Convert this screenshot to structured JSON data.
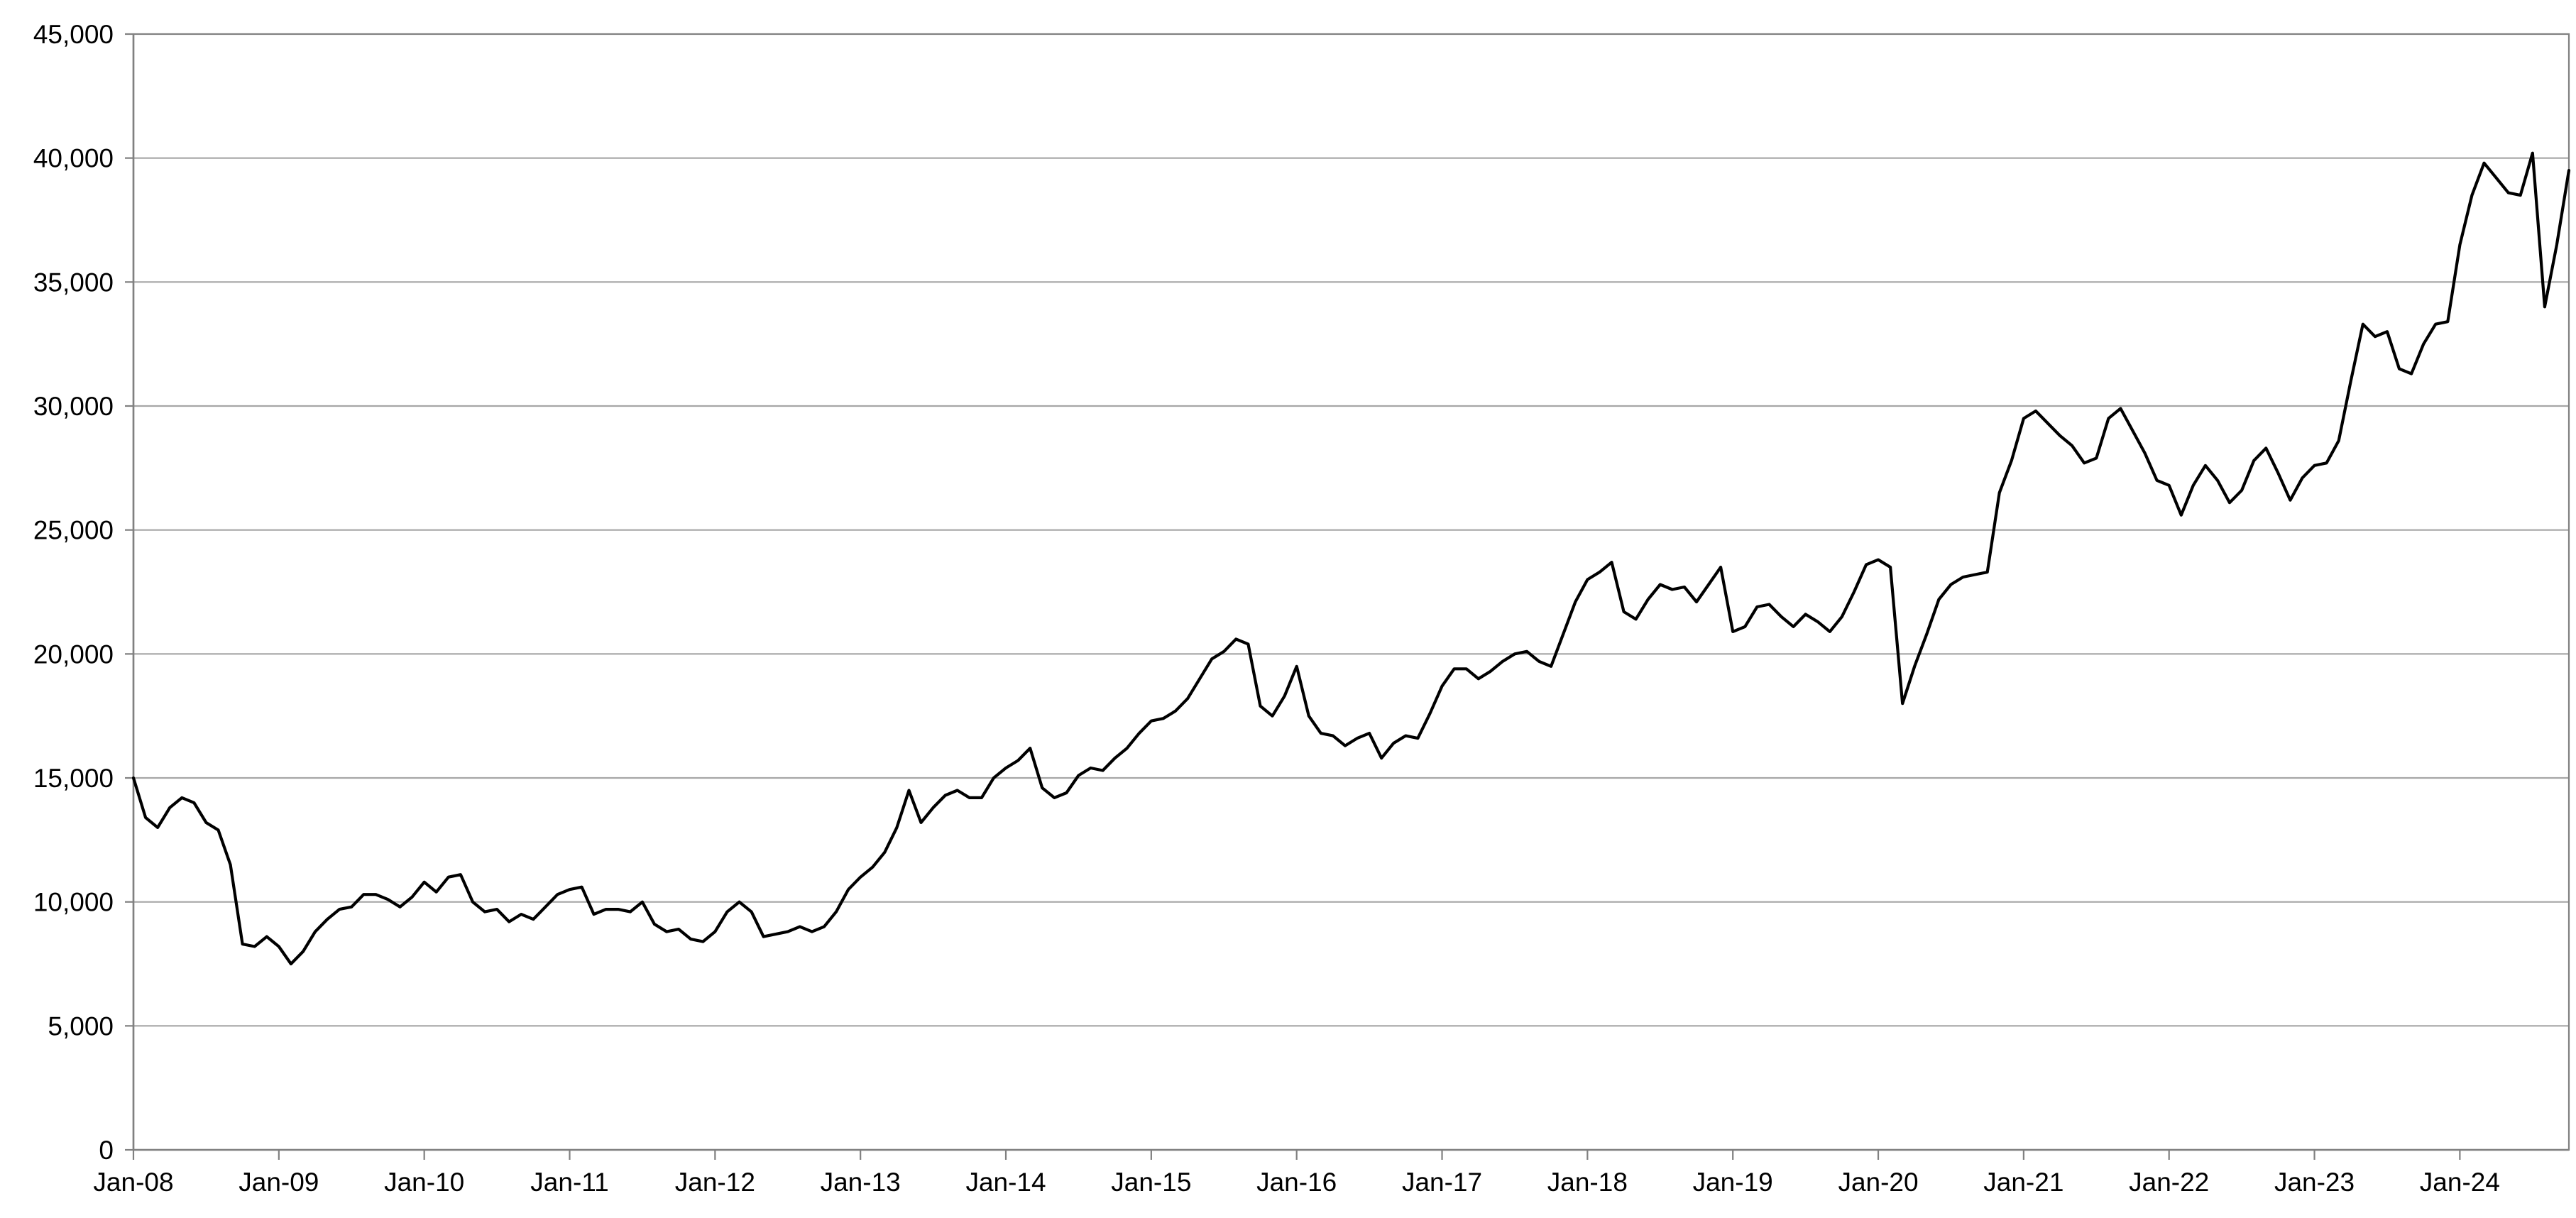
{
  "chart_data": {
    "type": "line",
    "title": "",
    "xlabel": "",
    "ylabel": "",
    "grid": true,
    "legend": "none",
    "ylim": [
      0,
      45000
    ],
    "xlim": [
      "2008-01",
      "2024-10"
    ],
    "y_ticks": [
      0,
      5000,
      10000,
      15000,
      20000,
      25000,
      30000,
      35000,
      40000,
      45000
    ],
    "y_tick_labels": [
      "0",
      "5,000",
      "10,000",
      "15,000",
      "20,000",
      "25,000",
      "30,000",
      "35,000",
      "40,000",
      "45,000"
    ],
    "x_tick_labels": [
      "Jan-08",
      "Jan-09",
      "Jan-10",
      "Jan-11",
      "Jan-12",
      "Jan-13",
      "Jan-14",
      "Jan-15",
      "Jan-16",
      "Jan-17",
      "Jan-18",
      "Jan-19",
      "Jan-20",
      "Jan-21",
      "Jan-22",
      "Jan-23",
      "Jan-24"
    ],
    "colors": {
      "line": "#000000",
      "grid": "#a6a6a6",
      "axis": "#808080"
    },
    "series": [
      {
        "x": [
          "2008-01",
          "2008-02",
          "2008-03",
          "2008-04",
          "2008-05",
          "2008-06",
          "2008-07",
          "2008-08",
          "2008-09",
          "2008-10",
          "2008-11",
          "2008-12",
          "2009-01",
          "2009-02",
          "2009-03",
          "2009-04",
          "2009-05",
          "2009-06",
          "2009-07",
          "2009-08",
          "2009-09",
          "2009-10",
          "2009-11",
          "2009-12",
          "2010-01",
          "2010-02",
          "2010-03",
          "2010-04",
          "2010-05",
          "2010-06",
          "2010-07",
          "2010-08",
          "2010-09",
          "2010-10",
          "2010-11",
          "2010-12",
          "2011-01",
          "2011-02",
          "2011-03",
          "2011-04",
          "2011-05",
          "2011-06",
          "2011-07",
          "2011-08",
          "2011-09",
          "2011-10",
          "2011-11",
          "2011-12",
          "2012-01",
          "2012-02",
          "2012-03",
          "2012-04",
          "2012-05",
          "2012-06",
          "2012-07",
          "2012-08",
          "2012-09",
          "2012-10",
          "2012-11",
          "2012-12",
          "2013-01",
          "2013-02",
          "2013-03",
          "2013-04",
          "2013-05",
          "2013-06",
          "2013-07",
          "2013-08",
          "2013-09",
          "2013-10",
          "2013-11",
          "2013-12",
          "2014-01",
          "2014-02",
          "2014-03",
          "2014-04",
          "2014-05",
          "2014-06",
          "2014-07",
          "2014-08",
          "2014-09",
          "2014-10",
          "2014-11",
          "2014-12",
          "2015-01",
          "2015-02",
          "2015-03",
          "2015-04",
          "2015-05",
          "2015-06",
          "2015-07",
          "2015-08",
          "2015-09",
          "2015-10",
          "2015-11",
          "2015-12",
          "2016-01",
          "2016-02",
          "2016-03",
          "2016-04",
          "2016-05",
          "2016-06",
          "2016-07",
          "2016-08",
          "2016-09",
          "2016-10",
          "2016-11",
          "2016-12",
          "2017-01",
          "2017-02",
          "2017-03",
          "2017-04",
          "2017-05",
          "2017-06",
          "2017-07",
          "2017-08",
          "2017-09",
          "2017-10",
          "2017-11",
          "2017-12",
          "2018-01",
          "2018-02",
          "2018-03",
          "2018-04",
          "2018-05",
          "2018-06",
          "2018-07",
          "2018-08",
          "2018-09",
          "2018-10",
          "2018-11",
          "2018-12",
          "2019-01",
          "2019-02",
          "2019-03",
          "2019-04",
          "2019-05",
          "2019-06",
          "2019-07",
          "2019-08",
          "2019-09",
          "2019-10",
          "2019-11",
          "2019-12",
          "2020-01",
          "2020-02",
          "2020-03",
          "2020-04",
          "2020-05",
          "2020-06",
          "2020-07",
          "2020-08",
          "2020-09",
          "2020-10",
          "2020-11",
          "2020-12",
          "2021-01",
          "2021-02",
          "2021-03",
          "2021-04",
          "2021-05",
          "2021-06",
          "2021-07",
          "2021-08",
          "2021-09",
          "2021-10",
          "2021-11",
          "2021-12",
          "2022-01",
          "2022-02",
          "2022-03",
          "2022-04",
          "2022-05",
          "2022-06",
          "2022-07",
          "2022-08",
          "2022-09",
          "2022-10",
          "2022-11",
          "2022-12",
          "2023-01",
          "2023-02",
          "2023-03",
          "2023-04",
          "2023-05",
          "2023-06",
          "2023-07",
          "2023-08",
          "2023-09",
          "2023-10",
          "2023-11",
          "2023-12",
          "2024-01",
          "2024-02",
          "2024-03",
          "2024-04",
          "2024-05",
          "2024-06",
          "2024-07",
          "2024-08",
          "2024-09",
          "2024-10"
        ],
        "values": [
          15000,
          13400,
          13000,
          13800,
          14200,
          14000,
          13200,
          12900,
          11500,
          8300,
          8200,
          8600,
          8200,
          7500,
          8000,
          8800,
          9300,
          9700,
          9800,
          10300,
          10300,
          10100,
          9800,
          10200,
          10800,
          10400,
          11000,
          11100,
          10000,
          9600,
          9700,
          9200,
          9500,
          9300,
          9800,
          10300,
          10500,
          10600,
          9500,
          9700,
          9700,
          9600,
          10000,
          9100,
          8800,
          8900,
          8500,
          8400,
          8800,
          9600,
          10000,
          9600,
          8600,
          8700,
          8800,
          9000,
          8800,
          9000,
          9600,
          10500,
          11000,
          11400,
          12000,
          13000,
          14500,
          13200,
          13800,
          14300,
          14500,
          14200,
          14200,
          15000,
          15400,
          15700,
          16200,
          14600,
          14200,
          14400,
          15100,
          15400,
          15300,
          15800,
          16200,
          16800,
          17300,
          17400,
          17700,
          18200,
          19000,
          19800,
          20100,
          20600,
          20400,
          17900,
          17500,
          18300,
          19500,
          17500,
          16800,
          16700,
          16300,
          16600,
          16800,
          15800,
          16400,
          16700,
          16600,
          17600,
          18700,
          19400,
          19400,
          19000,
          19300,
          19700,
          20000,
          20100,
          19700,
          19500,
          20800,
          22100,
          23000,
          23300,
          23700,
          21700,
          21400,
          22200,
          22800,
          22600,
          22700,
          22100,
          22800,
          23500,
          20900,
          21100,
          21900,
          22000,
          21500,
          21100,
          21600,
          21300,
          20900,
          21500,
          22500,
          23600,
          23800,
          23500,
          18000,
          19500,
          20800,
          22200,
          22800,
          23100,
          23200,
          23300,
          26500,
          27800,
          29500,
          29800,
          29300,
          28800,
          28400,
          27700,
          27900,
          29500,
          29900,
          29000,
          28100,
          27000,
          26800,
          25600,
          26800,
          27600,
          27000,
          26100,
          26600,
          27800,
          28300,
          27300,
          26200,
          27100,
          27600,
          27700,
          28600,
          31000,
          33300,
          32800,
          33000,
          31500,
          31300,
          32500,
          33300,
          33400,
          36500,
          38500,
          39800,
          39200,
          38600,
          38500,
          40200,
          34000,
          36500,
          39500
        ]
      }
    ]
  }
}
